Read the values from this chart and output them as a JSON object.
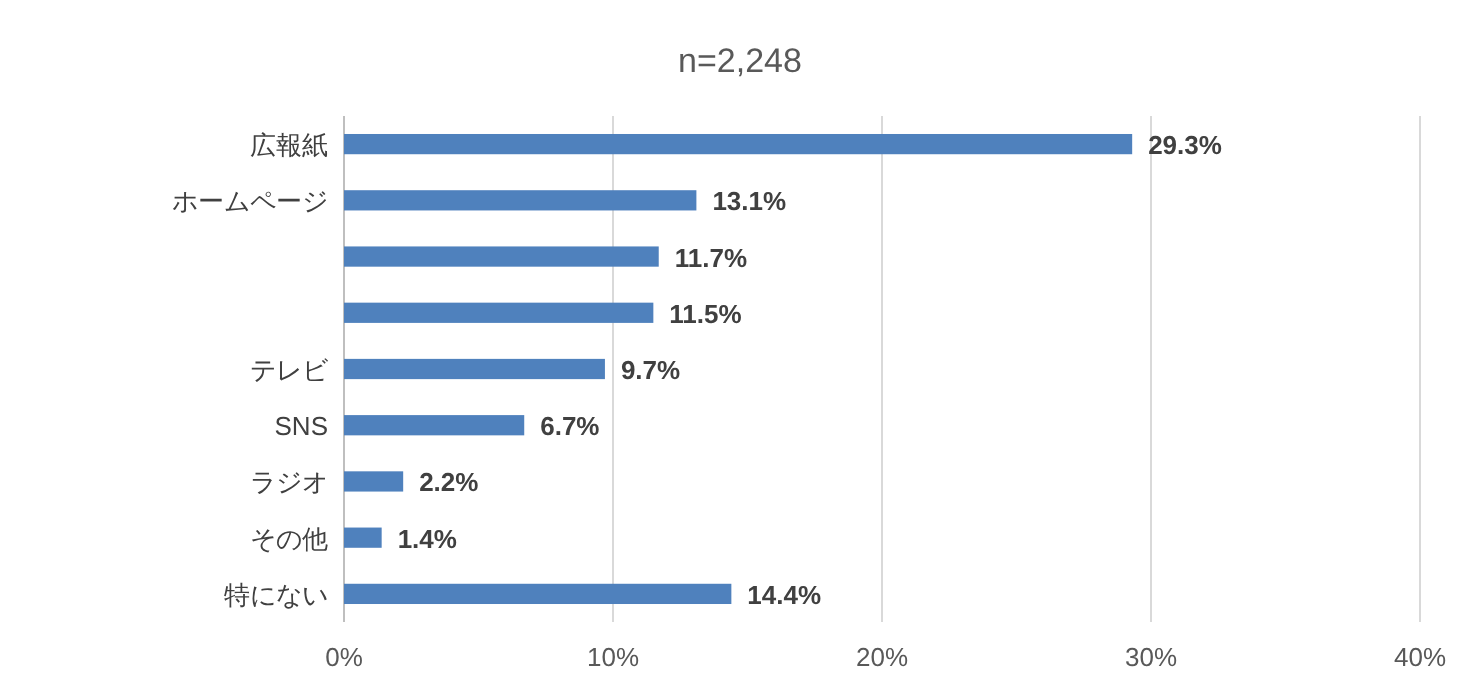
{
  "chart_data": {
    "type": "bar",
    "orientation": "horizontal",
    "title": "n=2,248",
    "categories": [
      "広報紙",
      "ホームページ",
      null,
      null,
      "テレビ",
      "SNS",
      "ラジオ",
      "その他",
      "特にない"
    ],
    "values": [
      29.3,
      13.1,
      11.7,
      11.5,
      9.7,
      6.7,
      2.2,
      1.4,
      14.4
    ],
    "value_labels": [
      "29.3%",
      "13.1%",
      "11.7%",
      "11.5%",
      "9.7%",
      "6.7%",
      "2.2%",
      "1.4%",
      "14.4%"
    ],
    "color": "#4f81bd",
    "xlim": [
      0,
      40
    ],
    "xticks": [
      {
        "value": 0,
        "label": "0%"
      },
      {
        "value": 10,
        "label": "10%"
      },
      {
        "value": 20,
        "label": "20%"
      },
      {
        "value": 30,
        "label": "30%"
      },
      {
        "value": 40,
        "label": "40%"
      }
    ],
    "grid": "x"
  }
}
